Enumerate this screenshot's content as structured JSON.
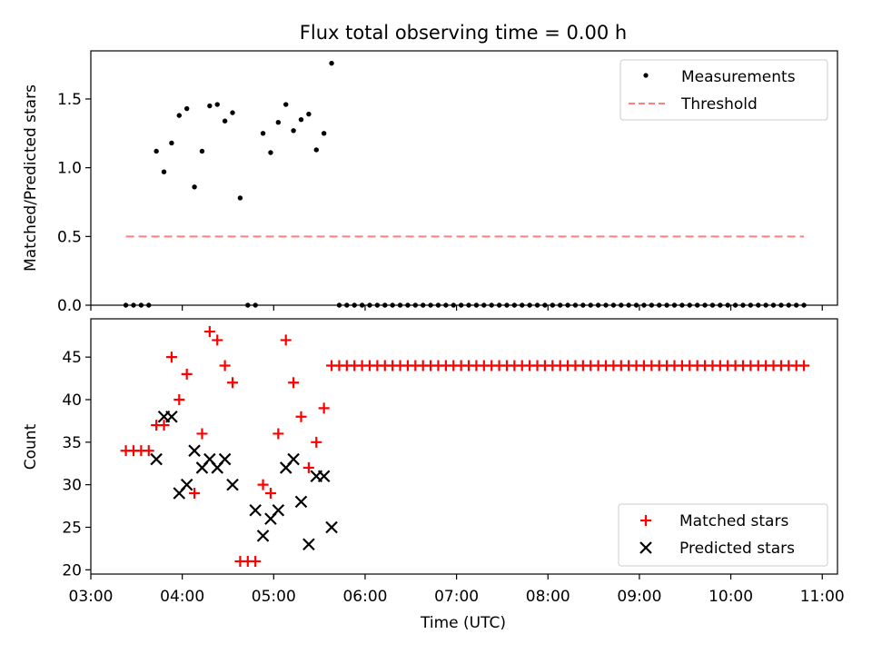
{
  "figure": {
    "title": "Flux total observing time = 0.00 h"
  },
  "chart_data": [
    {
      "type": "scatter",
      "ylabel": "Matched/Predicted stars",
      "ylim": [
        0,
        1.85
      ],
      "yticks": [
        0.0,
        0.5,
        1.0,
        1.5
      ],
      "ytick_labels": [
        "0.0",
        "0.5",
        "1.0",
        "1.5"
      ],
      "xlim": [
        "03:00",
        "11:10"
      ],
      "xticks": [
        "03:00",
        "04:00",
        "05:00",
        "06:00",
        "07:00",
        "08:00",
        "09:00",
        "10:00",
        "11:00"
      ],
      "legend_position": "top-right",
      "series": [
        {
          "name": "Measurements",
          "marker": "dot",
          "color": "#000000",
          "x": [
            "03:23",
            "03:28",
            "03:33",
            "03:38",
            "03:43",
            "03:48",
            "03:53",
            "03:58",
            "04:03",
            "04:08",
            "04:13",
            "04:18",
            "04:23",
            "04:28",
            "04:33",
            "04:38",
            "04:43",
            "04:48",
            "04:53",
            "04:58",
            "05:03",
            "05:08",
            "05:13",
            "05:18",
            "05:23",
            "05:28",
            "05:33",
            "05:38"
          ],
          "y": [
            0,
            0,
            0,
            0,
            1.12,
            0.97,
            1.18,
            1.38,
            1.43,
            0.86,
            1.12,
            1.45,
            1.46,
            1.34,
            1.4,
            0.78,
            0,
            0,
            1.25,
            1.11,
            1.33,
            1.46,
            1.27,
            1.35,
            1.39,
            1.13,
            1.25,
            1.76
          ]
        },
        {
          "name": "Threshold",
          "style": "dashed",
          "color": "#ff7f7f",
          "x": [
            "03:23",
            "10:48"
          ],
          "y": [
            0.5,
            0.5
          ]
        }
      ],
      "zero_run": {
        "start": "05:43",
        "end": "10:48",
        "step_minutes": 5,
        "y": 0
      }
    },
    {
      "type": "scatter",
      "xlabel": "Time (UTC)",
      "ylabel": "Count",
      "ylim": [
        19.5,
        49.5
      ],
      "yticks": [
        20,
        25,
        30,
        35,
        40,
        45
      ],
      "ytick_labels": [
        "20",
        "25",
        "30",
        "35",
        "40",
        "45"
      ],
      "xlim": [
        "03:00",
        "11:10"
      ],
      "xticks": [
        "03:00",
        "04:00",
        "05:00",
        "06:00",
        "07:00",
        "08:00",
        "09:00",
        "10:00",
        "11:00"
      ],
      "xtick_labels": [
        "03:00",
        "04:00",
        "05:00",
        "06:00",
        "07:00",
        "08:00",
        "09:00",
        "10:00",
        "11:00"
      ],
      "legend_position": "bottom-right",
      "series": [
        {
          "name": "Matched stars",
          "marker": "plus",
          "color": "#ff0000",
          "x": [
            "03:23",
            "03:28",
            "03:33",
            "03:38",
            "03:43",
            "03:48",
            "03:53",
            "03:58",
            "04:03",
            "04:08",
            "04:13",
            "04:18",
            "04:23",
            "04:28",
            "04:33",
            "04:38",
            "04:43",
            "04:48",
            "04:53",
            "04:58",
            "05:03",
            "05:08",
            "05:13",
            "05:18",
            "05:23",
            "05:28",
            "05:33",
            "05:38"
          ],
          "y": [
            34,
            34,
            34,
            34,
            37,
            37,
            45,
            40,
            43,
            29,
            36,
            48,
            47,
            44,
            42,
            21,
            21,
            21,
            30,
            29,
            36,
            47,
            42,
            38,
            32,
            35,
            39,
            44
          ]
        },
        {
          "name": "Predicted stars",
          "marker": "x",
          "color": "#000000",
          "x": [
            "03:43",
            "03:48",
            "03:53",
            "03:58",
            "04:03",
            "04:08",
            "04:13",
            "04:18",
            "04:23",
            "04:28",
            "04:33",
            "04:48",
            "04:53",
            "04:58",
            "05:03",
            "05:08",
            "05:13",
            "05:18",
            "05:23",
            "05:28",
            "05:33",
            "05:38"
          ],
          "y": [
            33,
            38,
            38,
            29,
            30,
            34,
            32,
            33,
            32,
            33,
            30,
            27,
            24,
            26,
            27,
            32,
            33,
            28,
            23,
            31,
            31,
            25
          ]
        }
      ],
      "constant_run": {
        "series": "Matched stars",
        "start": "05:43",
        "end": "10:48",
        "step_minutes": 5,
        "y": 44
      }
    }
  ]
}
